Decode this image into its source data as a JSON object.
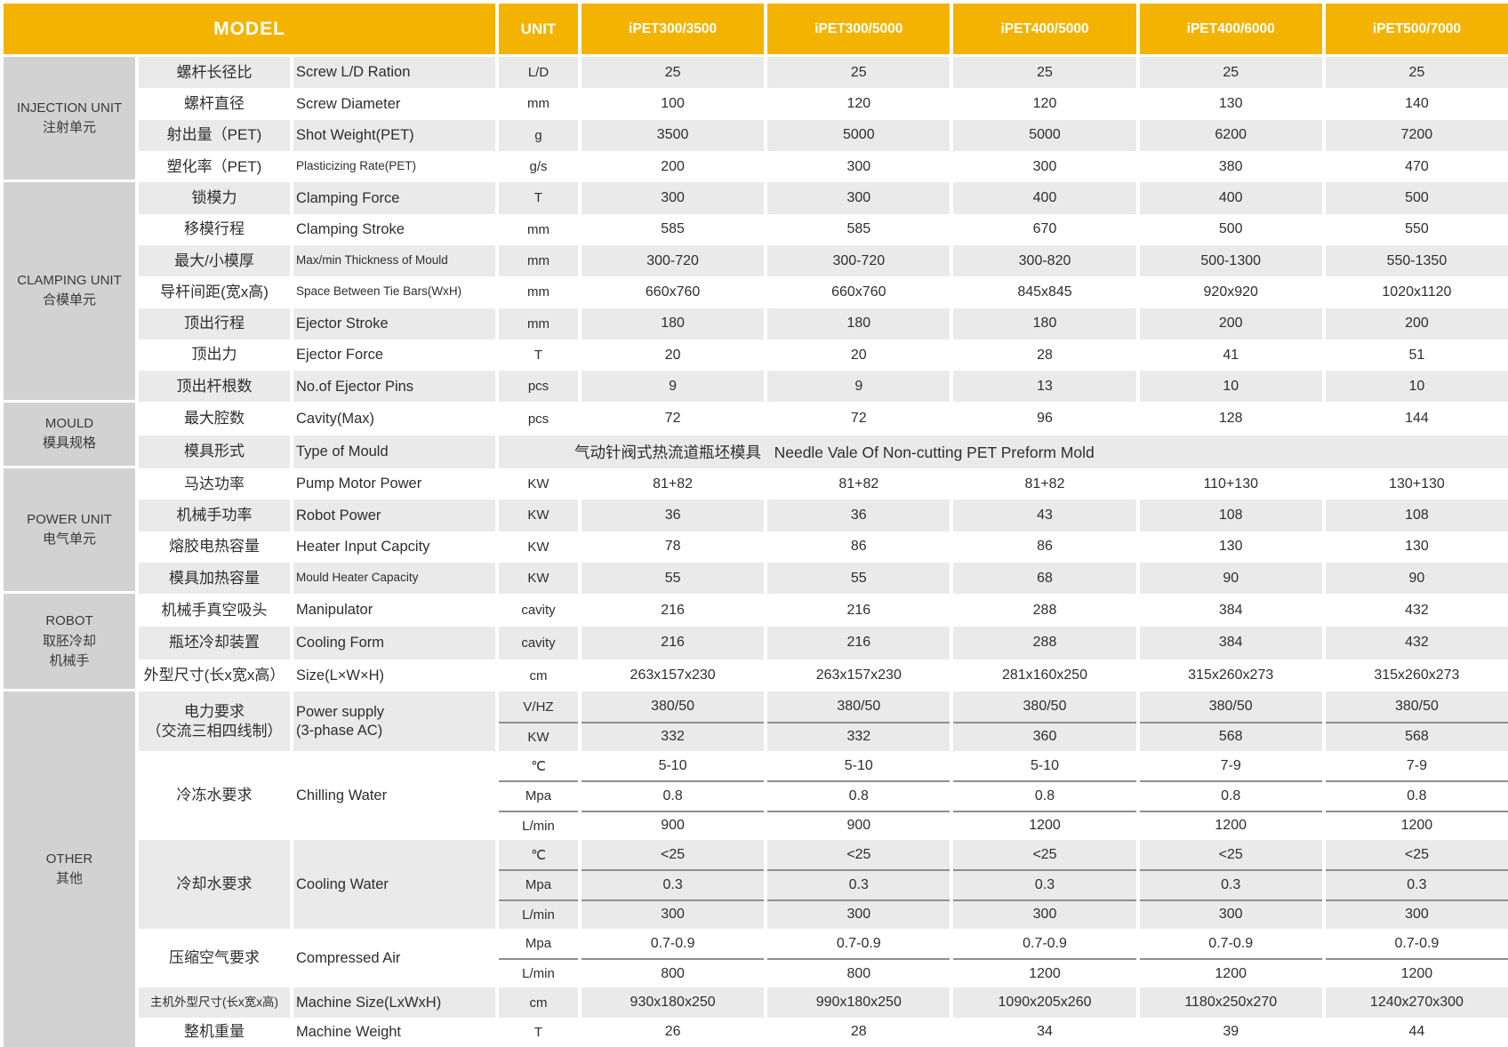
{
  "colors": {
    "accent": "#F5B301",
    "group_bg": "#D2D2D2",
    "stripe": "#EAEAEA"
  },
  "header": {
    "model_label": "MODEL",
    "unit_label": "UNIT",
    "models": [
      "iPET300/3500",
      "iPET300/5000",
      "iPET400/5000",
      "iPET400/6000",
      "iPET500/7000"
    ]
  },
  "sections": [
    {
      "group": "INJECTION UNIT\n注射单元",
      "rows": [
        {
          "zh": "螺杆长径比",
          "en": "Screw L/D Ration",
          "unit": "L/D",
          "values": [
            "25",
            "25",
            "25",
            "25",
            "25"
          ]
        },
        {
          "zh": "螺杆直径",
          "en": "Screw Diameter",
          "unit": "mm",
          "values": [
            "100",
            "120",
            "120",
            "130",
            "140"
          ]
        },
        {
          "zh": "射出量（PET)",
          "en": "Shot Weight(PET)",
          "unit": "g",
          "values": [
            "3500",
            "5000",
            "5000",
            "6200",
            "7200"
          ]
        },
        {
          "zh": "塑化率（PET)",
          "en": "Plasticizing Rate(PET)",
          "en_small": true,
          "unit": "g/s",
          "values": [
            "200",
            "300",
            "300",
            "380",
            "470"
          ]
        }
      ]
    },
    {
      "group": "CLAMPING UNIT\n合模单元",
      "rows": [
        {
          "zh": "锁模力",
          "en": "Clamping Force",
          "unit": "T",
          "values": [
            "300",
            "300",
            "400",
            "400",
            "500"
          ]
        },
        {
          "zh": "移模行程",
          "en": "Clamping Stroke",
          "unit": "mm",
          "values": [
            "585",
            "585",
            "670",
            "500",
            "550"
          ]
        },
        {
          "zh": "最大/小模厚",
          "en": "Max/min Thickness of Mould",
          "en_small": true,
          "unit": "mm",
          "values": [
            "300-720",
            "300-720",
            "300-820",
            "500-1300",
            "550-1350"
          ]
        },
        {
          "zh": "导杆间距(宽x高)",
          "en": "Space Between Tie Bars(WxH)",
          "en_small": true,
          "unit": "mm",
          "values": [
            "660x760",
            "660x760",
            "845x845",
            "920x920",
            "1020x1120"
          ]
        },
        {
          "zh": "顶出行程",
          "en": "Ejector Stroke",
          "unit": "mm",
          "values": [
            "180",
            "180",
            "180",
            "200",
            "200"
          ]
        },
        {
          "zh": "顶出力",
          "en": "Ejector Force",
          "unit": "T",
          "values": [
            "20",
            "20",
            "28",
            "41",
            "51"
          ]
        },
        {
          "zh": "顶出杆根数",
          "en": "No.of Ejector Pins",
          "unit": "pcs",
          "values": [
            "9",
            "9",
            "13",
            "10",
            "10"
          ]
        }
      ]
    },
    {
      "group": "MOULD\n模具规格",
      "rows": [
        {
          "zh": "最大腔数",
          "en": "Cavity(Max)",
          "unit": "pcs",
          "values": [
            "72",
            "72",
            "96",
            "128",
            "144"
          ]
        },
        {
          "zh": "模具形式",
          "en": "Type of Mould",
          "merged": "气动针阀式热流道瓶坯模具   Needle Vale Of Non-cutting PET Preform Mold"
        }
      ]
    },
    {
      "group": "POWER UNIT\n电气单元",
      "rows": [
        {
          "zh": "马达功率",
          "en": "Pump Motor Power",
          "unit": "KW",
          "values": [
            "81+82",
            "81+82",
            "81+82",
            "110+130",
            "130+130"
          ]
        },
        {
          "zh": "机械手功率",
          "en": "Robot Power",
          "unit": "KW",
          "values": [
            "36",
            "36",
            "43",
            "108",
            "108"
          ]
        },
        {
          "zh": "熔胶电热容量",
          "en": "Heater Input Capcity",
          "unit": "KW",
          "values": [
            "78",
            "86",
            "86",
            "130",
            "130"
          ]
        },
        {
          "zh": "模具加热容量",
          "en": "Mould Heater Capacity",
          "en_small": true,
          "unit": "KW",
          "values": [
            "55",
            "55",
            "68",
            "90",
            "90"
          ]
        }
      ]
    },
    {
      "group": "ROBOT\n取胚冷却\n机械手",
      "rows": [
        {
          "zh": "机械手真空吸头",
          "en": "Manipulator",
          "unit": "cavity",
          "values": [
            "216",
            "216",
            "288",
            "384",
            "432"
          ]
        },
        {
          "zh": "瓶坯冷却装置",
          "en": "Cooling Form",
          "unit": "cavity",
          "values": [
            "216",
            "216",
            "288",
            "384",
            "432"
          ]
        },
        {
          "zh": "外型尺寸(长x宽x高）",
          "en": "Size(L×W×H)",
          "unit": "cm",
          "values": [
            "263x157x230",
            "263x157x230",
            "281x160x250",
            "315x260x273",
            "315x260x273"
          ]
        }
      ]
    },
    {
      "group": "OTHER\n其他",
      "rows": [
        {
          "zh": "电力要求\n（交流三相四线制）",
          "en": "Power supply\n(3-phase AC)",
          "subs": [
            {
              "unit": "V/HZ",
              "values": [
                "380/50",
                "380/50",
                "380/50",
                "380/50",
                "380/50"
              ]
            },
            {
              "unit": "KW",
              "values": [
                "332",
                "332",
                "360",
                "568",
                "568"
              ]
            }
          ]
        },
        {
          "zh": "冷冻水要求",
          "en": "Chilling Water",
          "subs": [
            {
              "unit": "℃",
              "values": [
                "5-10",
                "5-10",
                "5-10",
                "7-9",
                "7-9"
              ]
            },
            {
              "unit": "Mpa",
              "values": [
                "0.8",
                "0.8",
                "0.8",
                "0.8",
                "0.8"
              ]
            },
            {
              "unit": "L/min",
              "values": [
                "900",
                "900",
                "1200",
                "1200",
                "1200"
              ]
            }
          ]
        },
        {
          "zh": "冷却水要求",
          "en": "Cooling Water",
          "subs": [
            {
              "unit": "℃",
              "values": [
                "<25",
                "<25",
                "<25",
                "<25",
                "<25"
              ]
            },
            {
              "unit": "Mpa",
              "values": [
                "0.3",
                "0.3",
                "0.3",
                "0.3",
                "0.3"
              ]
            },
            {
              "unit": "L/min",
              "values": [
                "300",
                "300",
                "300",
                "300",
                "300"
              ]
            }
          ]
        },
        {
          "zh": "压缩空气要求",
          "en": "Compressed Air",
          "subs": [
            {
              "unit": "Mpa",
              "values": [
                "0.7-0.9",
                "0.7-0.9",
                "0.7-0.9",
                "0.7-0.9",
                "0.7-0.9"
              ]
            },
            {
              "unit": "L/min",
              "values": [
                "800",
                "800",
                "1200",
                "1200",
                "1200"
              ]
            }
          ]
        },
        {
          "zh": "主机外型尺寸(长x宽x高)",
          "zh_small": true,
          "en": "Machine Size(LxWxH)",
          "unit": "cm",
          "values": [
            "930x180x250",
            "990x180x250",
            "1090x205x260",
            "1180x250x270",
            "1240x270x300"
          ]
        },
        {
          "zh": "整机重量",
          "en": "Machine Weight",
          "unit": "T",
          "values": [
            "26",
            "28",
            "34",
            "39",
            "44"
          ]
        }
      ]
    }
  ]
}
